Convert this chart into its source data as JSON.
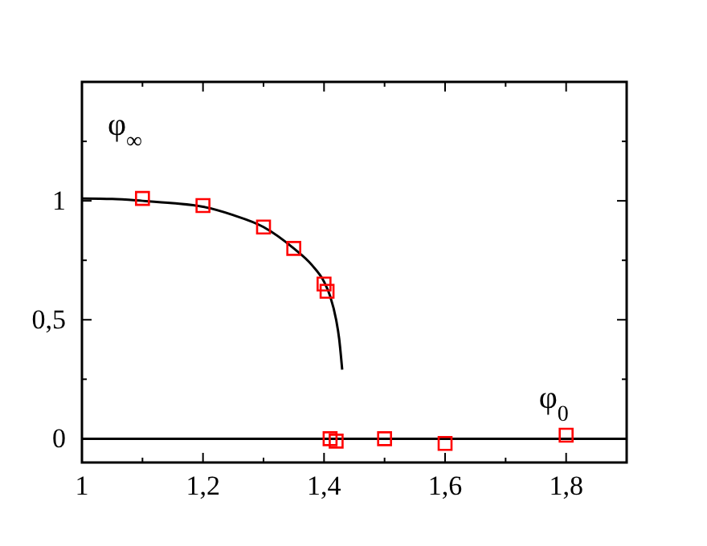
{
  "chart_data": {
    "type": "scatter",
    "xlabel": "φ$_{0}$",
    "ylabel": "φ$_{∞}$",
    "xlim": [
      1,
      1.9
    ],
    "ylim": [
      -0.1,
      1.5
    ],
    "xticks": [
      {
        "value": 1,
        "label": "1"
      },
      {
        "value": 1.1,
        "label": null
      },
      {
        "value": 1.2,
        "label": "1,2"
      },
      {
        "value": 1.3,
        "label": null
      },
      {
        "value": 1.4,
        "label": "1,4"
      },
      {
        "value": 1.5,
        "label": null
      },
      {
        "value": 1.6,
        "label": "1,6"
      },
      {
        "value": 1.7,
        "label": null
      },
      {
        "value": 1.8,
        "label": "1,8"
      }
    ],
    "yticks": [
      {
        "value": 0,
        "label": "0"
      },
      {
        "value": 0.25,
        "label": null
      },
      {
        "value": 0.5,
        "label": "0,5"
      },
      {
        "value": 0.75,
        "label": null
      },
      {
        "value": 1,
        "label": "1"
      },
      {
        "value": 1.25,
        "label": null
      }
    ],
    "marker": "square",
    "series": [
      {
        "type": "line",
        "color": "#000000",
        "x": [
          1,
          1.05,
          1.1,
          1.15,
          1.2,
          1.25,
          1.3,
          1.35,
          1.38,
          1.4,
          1.41,
          1.42,
          1.425,
          1.43
        ],
        "values": [
          1.01,
          1.008,
          1.0,
          0.99,
          0.975,
          0.94,
          0.89,
          0.8,
          0.73,
          0.66,
          0.6,
          0.5,
          0.42,
          0.29
        ],
        "marker": "none"
      },
      {
        "type": "line",
        "color": "#000000",
        "x": [
          1,
          1.9
        ],
        "values": [
          0,
          0
        ],
        "marker": "none"
      },
      {
        "color": "#ff0000",
        "x": [
          1.1,
          1.2,
          1.3,
          1.35,
          1.4,
          1.405,
          1.41,
          1.42,
          1.5,
          1.6,
          1.8
        ],
        "values": [
          1.01,
          0.98,
          0.89,
          0.8,
          0.65,
          0.62,
          0,
          -0.01,
          0,
          -0.02,
          0.015
        ]
      }
    ]
  }
}
